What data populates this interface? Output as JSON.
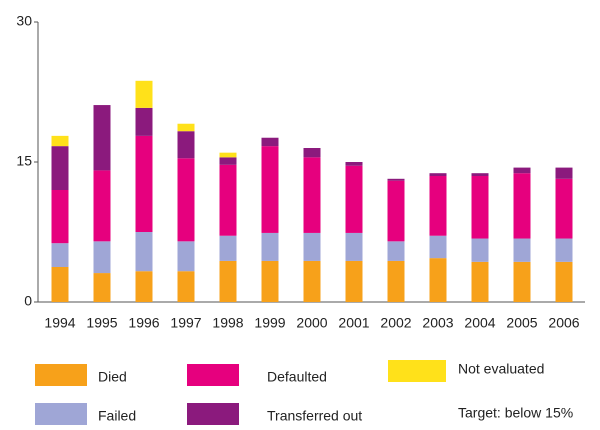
{
  "chart_data": {
    "type": "stacked_bar",
    "categories": [
      "1994",
      "1995",
      "1996",
      "1997",
      "1998",
      "1999",
      "2000",
      "2001",
      "2002",
      "2003",
      "2004",
      "2005",
      "2006"
    ],
    "series": [
      {
        "name": "Died",
        "color": "#f7a11a",
        "values": [
          3.75,
          3.1,
          3.3,
          3.3,
          4.4,
          4.4,
          4.4,
          4.4,
          4.4,
          4.7,
          4.3,
          4.3,
          4.3
        ]
      },
      {
        "name": "Failed",
        "color": "#9fa6d6",
        "values": [
          2.55,
          3.4,
          4.2,
          3.2,
          2.7,
          3.0,
          3.0,
          3.0,
          2.1,
          2.4,
          2.5,
          2.5,
          2.5
        ]
      },
      {
        "name": "Defaulted",
        "color": "#e6007e",
        "values": [
          5.7,
          7.6,
          10.3,
          8.9,
          7.6,
          9.3,
          8.1,
          7.2,
          6.5,
          6.4,
          6.7,
          7.0,
          6.4
        ]
      },
      {
        "name": "Transferred out",
        "color": "#8b1a7d",
        "values": [
          4.7,
          7.0,
          3.0,
          2.9,
          0.8,
          0.9,
          1.0,
          0.4,
          0.2,
          0.3,
          0.3,
          0.6,
          1.2
        ]
      },
      {
        "name": "Not evaluated",
        "color": "#ffe11a",
        "values": [
          1.1,
          null,
          2.9,
          0.8,
          0.5,
          null,
          null,
          null,
          null,
          null,
          null,
          null,
          null
        ]
      }
    ],
    "ylim": [
      0,
      30
    ],
    "yticks": [
      0,
      15,
      30
    ],
    "grid": false,
    "annotation": "Target: below 15%"
  }
}
